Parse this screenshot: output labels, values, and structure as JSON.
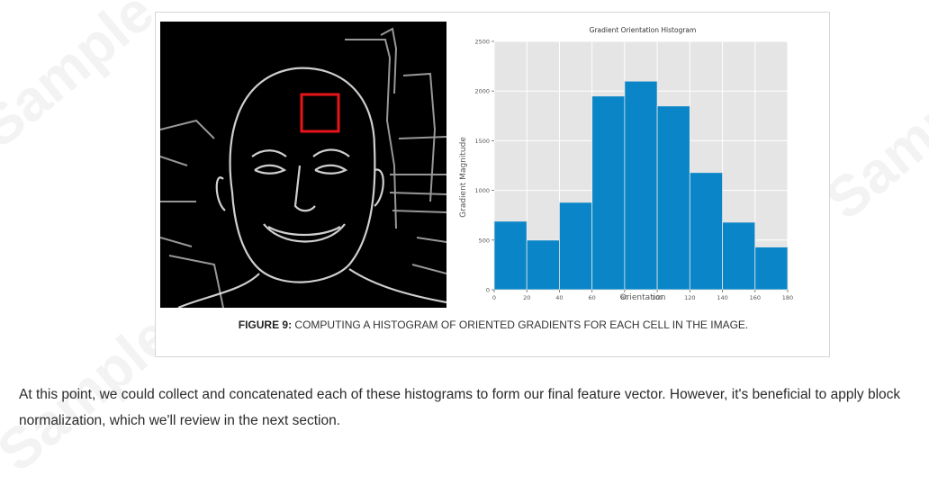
{
  "watermark_text": "Sample",
  "figure": {
    "caption_lead": "FIGURE 9:",
    "caption_rest": " COMPUTING A HISTOGRAM OF ORIENTED GRADIENTS FOR EACH CELL IN THE IMAGE."
  },
  "chart_data": {
    "type": "bar",
    "title": "Gradient Orientation Histogram",
    "xlabel": "Orientation",
    "ylabel": "Gradient Magnitude",
    "bins": [
      [
        0,
        20
      ],
      [
        20,
        40
      ],
      [
        40,
        60
      ],
      [
        60,
        80
      ],
      [
        80,
        100
      ],
      [
        100,
        120
      ],
      [
        120,
        140
      ],
      [
        140,
        160
      ],
      [
        160,
        180
      ]
    ],
    "values": [
      690,
      500,
      880,
      1950,
      2100,
      1850,
      1180,
      680,
      430
    ],
    "xlim": [
      0,
      180
    ],
    "ylim": [
      0,
      2500
    ],
    "xticks": [
      0,
      20,
      40,
      60,
      80,
      100,
      120,
      140,
      160,
      180
    ],
    "yticks": [
      0,
      500,
      1000,
      1500,
      2000,
      2500
    ],
    "bar_color": "#0a86c8",
    "background": "#e5e5e5",
    "grid": true
  },
  "body": {
    "paragraph": "At this point, we could collect and concatenated each of these histograms to form our final feature vector. However, it's beneficial to apply block normalization, which we'll review in the next section."
  },
  "colors": {
    "highlight_box": "#e8141a"
  }
}
